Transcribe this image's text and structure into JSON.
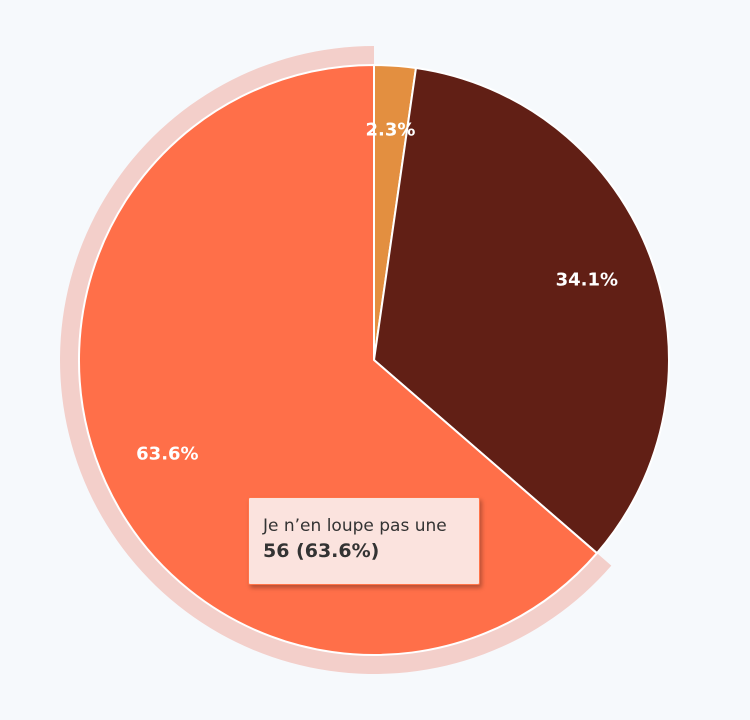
{
  "chart_data": {
    "type": "pie",
    "title": "",
    "slices": [
      {
        "label": "",
        "value": 2,
        "percent_label": "2.3%",
        "color": "#e38f40"
      },
      {
        "label": "",
        "value": 30,
        "percent_label": "34.1%",
        "color": "#611f15"
      },
      {
        "label": "Je n’en loupe pas une",
        "value": 56,
        "percent_label": "63.6%",
        "color": "#ff6f49"
      }
    ],
    "highlighted_slice": 2,
    "highlight_halo_color": "#f3cfca",
    "slice_border_color": "#ffffff",
    "start_angle": "12 o'clock",
    "direction": "clockwise"
  },
  "tooltip": {
    "title": "Je n’en loupe pas une",
    "value": "56 (63.6%)"
  }
}
